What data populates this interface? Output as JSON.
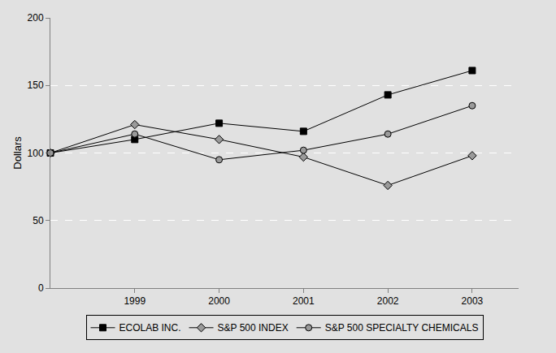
{
  "chart_data": {
    "type": "line",
    "categories": [
      null,
      "1999",
      "2000",
      "2001",
      "2002",
      "2003"
    ],
    "y_label": "Dollars",
    "ylim": [
      0,
      200
    ],
    "yticks": [
      0,
      50,
      100,
      150,
      200
    ],
    "grid": true,
    "legend": "bottom",
    "series": [
      {
        "name": "ECOLAB INC.",
        "color": "#000000",
        "marker": "square",
        "line_style": "solid",
        "values": [
          100,
          110,
          122,
          116,
          143,
          161
        ]
      },
      {
        "name": "S&P 500 INDEX",
        "color": "#9a9a9a",
        "marker": "diamond",
        "line_style": "solid",
        "values": [
          100,
          121,
          110,
          97,
          76,
          98
        ]
      },
      {
        "name": "S&P 500 SPECIALTY CHEMICALS",
        "color": "#9a9a9a",
        "marker": "circle",
        "line_style": "solid",
        "values": [
          100,
          114,
          95,
          102,
          114,
          135
        ]
      }
    ]
  }
}
